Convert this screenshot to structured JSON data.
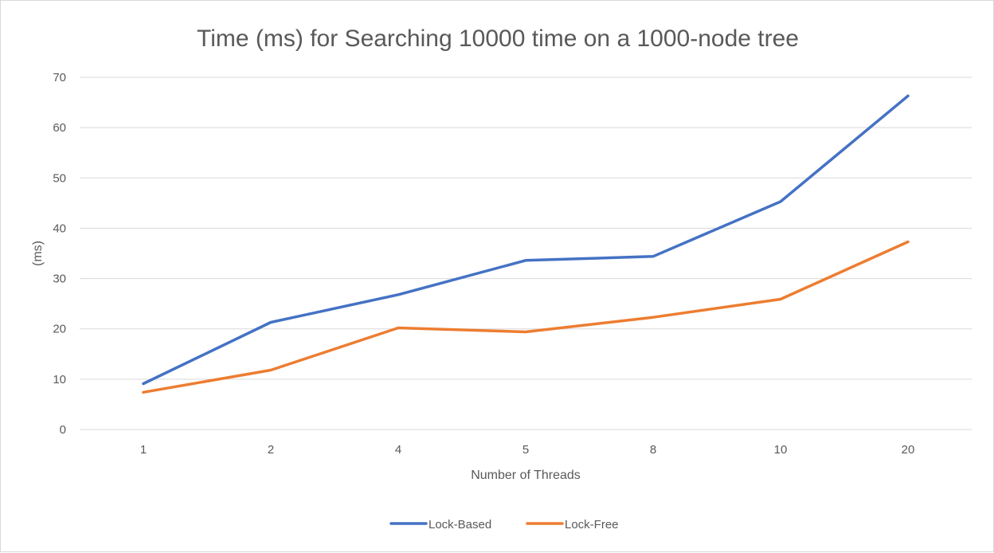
{
  "chart_data": {
    "type": "line",
    "title": "Time (ms) for Searching 10000 time on a 1000-node tree",
    "xlabel": "Number of Threads",
    "ylabel": "(ms)",
    "categories": [
      "1",
      "2",
      "4",
      "5",
      "8",
      "10",
      "20"
    ],
    "ylim": [
      0,
      70
    ],
    "yticks": [
      0,
      10,
      20,
      30,
      40,
      50,
      60,
      70
    ],
    "grid": true,
    "legend_position": "bottom",
    "series": [
      {
        "name": "Lock-Based",
        "color": "#4472c4",
        "values": [
          9.1,
          21.3,
          26.8,
          33.6,
          34.4,
          45.3,
          66.3
        ]
      },
      {
        "name": "Lock-Free",
        "color": "#ed7d31",
        "values": [
          7.4,
          11.8,
          20.2,
          19.4,
          22.3,
          25.9,
          37.3
        ]
      }
    ]
  }
}
